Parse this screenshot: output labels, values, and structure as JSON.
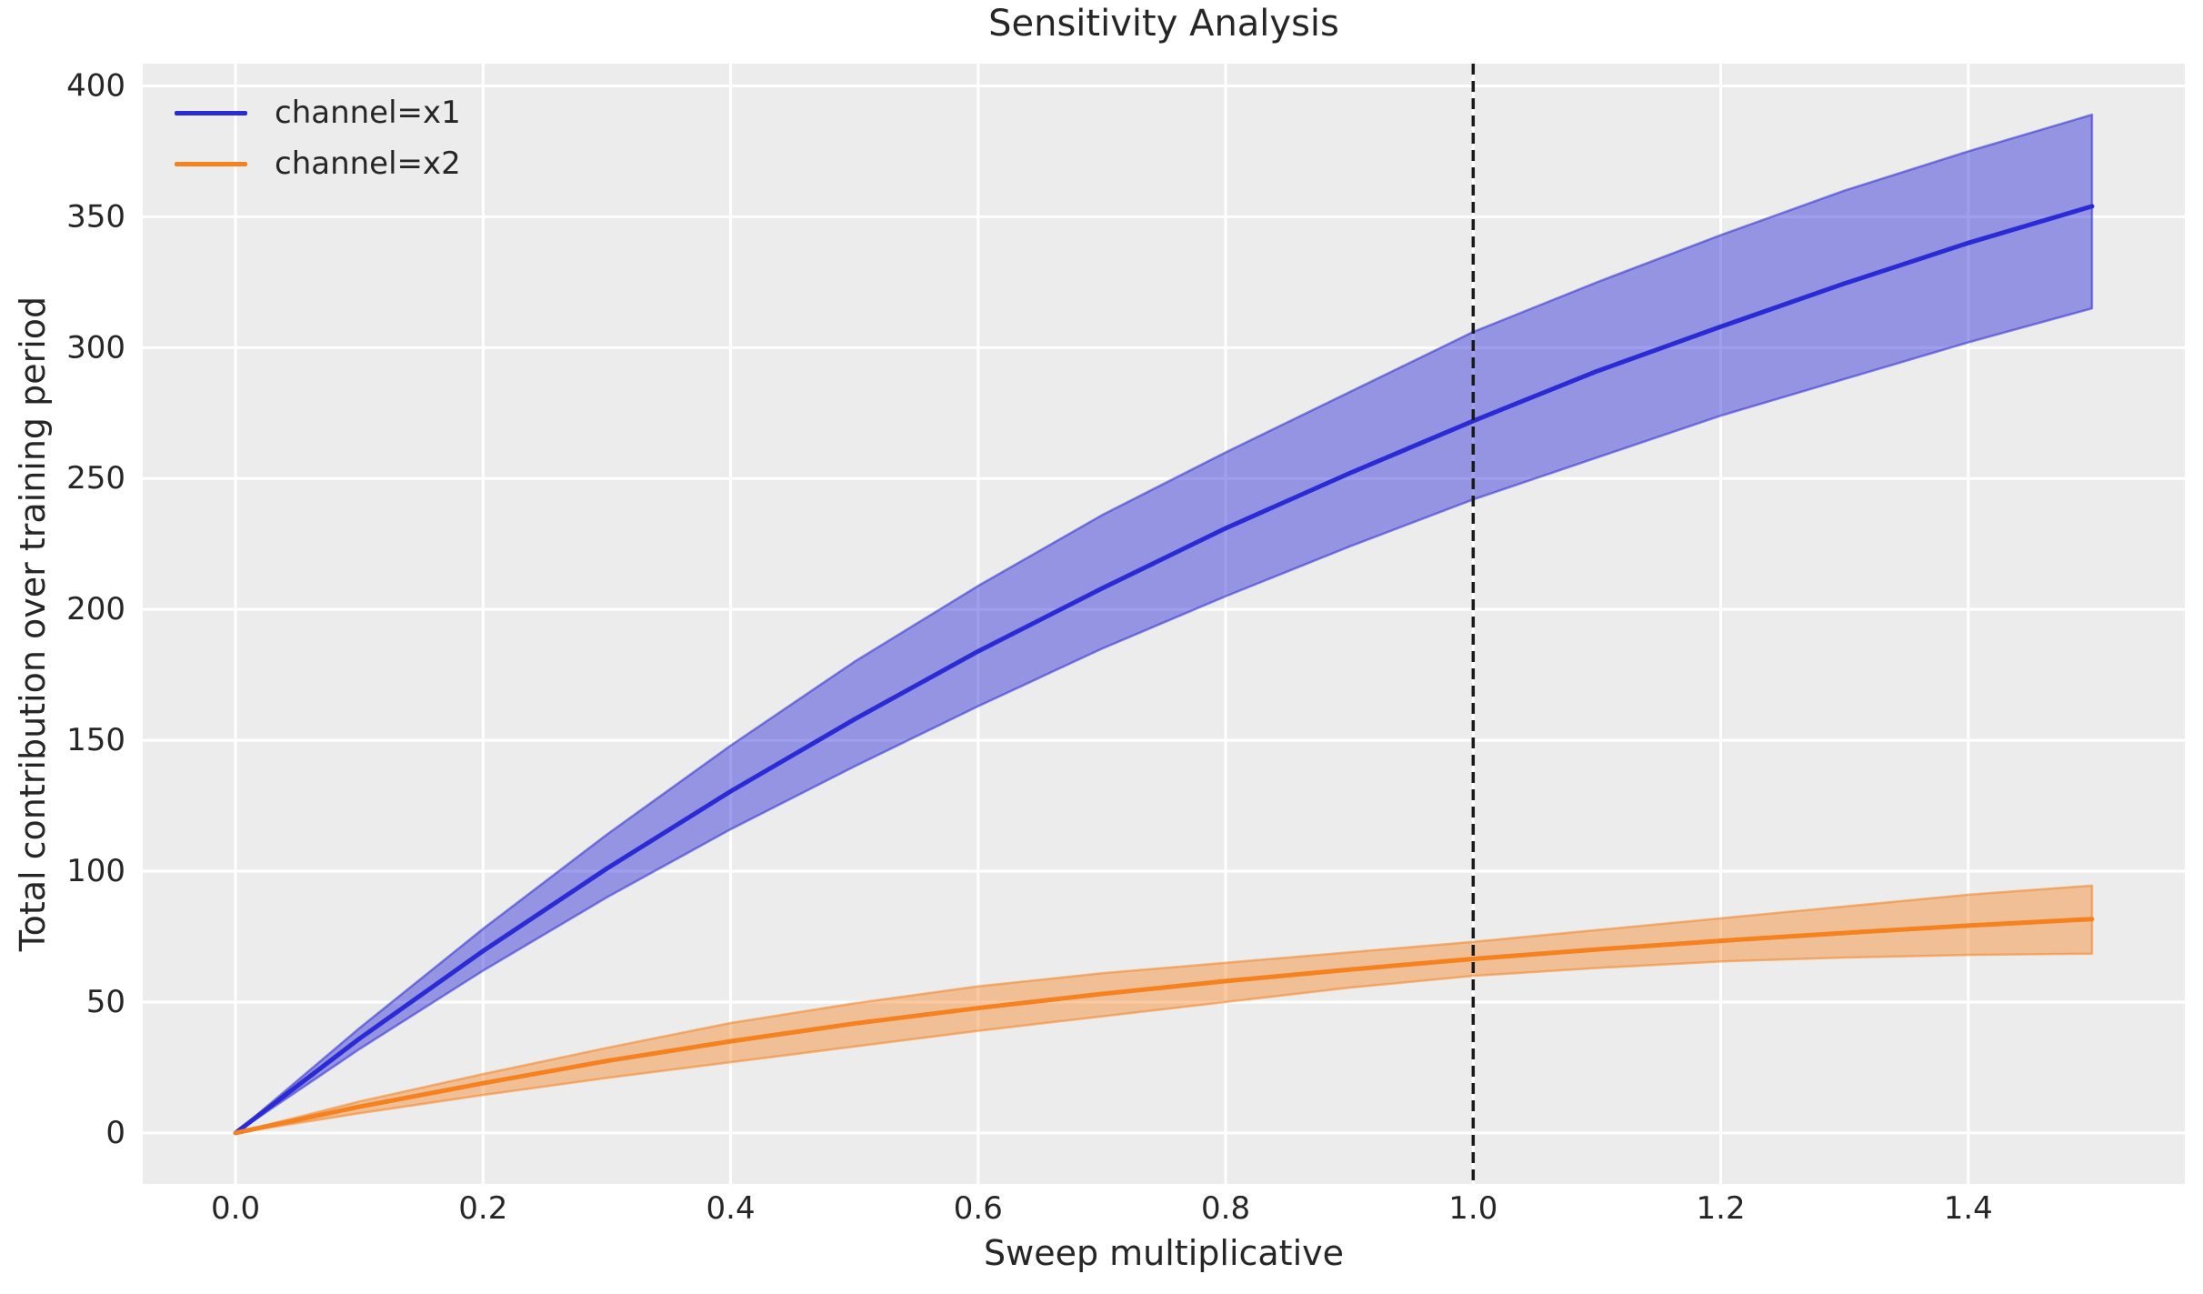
{
  "figure": {
    "background": "#ffffff",
    "text_color": "#262626"
  },
  "chart_data": {
    "type": "line",
    "title": "Sensitivity Analysis",
    "xlabel": "Sweep multiplicative",
    "ylabel": "Total contribution over training period",
    "xlim": [
      -0.075,
      1.575
    ],
    "ylim": [
      -19.5,
      408.5
    ],
    "x_ticks": [
      0.0,
      0.2,
      0.4,
      0.6,
      0.8,
      1.0,
      1.2,
      1.4
    ],
    "x_tick_labels": [
      "0.0",
      "0.2",
      "0.4",
      "0.6",
      "0.8",
      "1.0",
      "1.2",
      "1.4"
    ],
    "y_ticks": [
      0,
      50,
      100,
      150,
      200,
      250,
      300,
      350,
      400
    ],
    "y_tick_labels": [
      "0",
      "50",
      "100",
      "150",
      "200",
      "250",
      "300",
      "350",
      "400"
    ],
    "grid": true,
    "grid_color": "#ffffff",
    "plot_background": "#ececec",
    "reference_line": {
      "x": 1.0,
      "color": "#1a1a1a",
      "style": "dashed"
    },
    "x": [
      0.0,
      0.1,
      0.2,
      0.3,
      0.4,
      0.5,
      0.6,
      0.7,
      0.8,
      0.9,
      1.0,
      1.1,
      1.2,
      1.3,
      1.4,
      1.5
    ],
    "series": [
      {
        "name": "channel=x1",
        "color": "#2b2bd6",
        "band_opacity": 0.45,
        "values": [
          0,
          36,
          69.5,
          101,
          130.5,
          158,
          184,
          208,
          231,
          252,
          272,
          291,
          308,
          324.5,
          340,
          354
        ],
        "lower": [
          0,
          32,
          62,
          90,
          116,
          140,
          163,
          185,
          205,
          224,
          242,
          258,
          274,
          288,
          302,
          315
        ],
        "upper": [
          0,
          40,
          78,
          114,
          148,
          180,
          209,
          236,
          260,
          283,
          306,
          325,
          343,
          360,
          375,
          389
        ]
      },
      {
        "name": "channel=x2",
        "color": "#f5811f",
        "band_opacity": 0.42,
        "values": [
          0,
          10,
          19,
          27.5,
          35,
          41.8,
          47.7,
          53.1,
          58,
          62.4,
          66.5,
          70.1,
          73.4,
          76.4,
          79.2,
          81.7
        ],
        "lower": [
          0,
          7.5,
          14.5,
          21,
          27,
          33,
          39,
          44.5,
          50,
          55.5,
          60,
          63,
          65.5,
          67,
          68,
          68.5
        ],
        "upper": [
          0,
          12,
          22.5,
          32.5,
          42,
          49.5,
          56,
          61,
          65,
          69,
          73,
          77.5,
          82,
          86.5,
          91,
          94.5
        ]
      }
    ],
    "legend": {
      "position": "upper left",
      "entries": [
        "channel=x1",
        "channel=x2"
      ]
    }
  }
}
